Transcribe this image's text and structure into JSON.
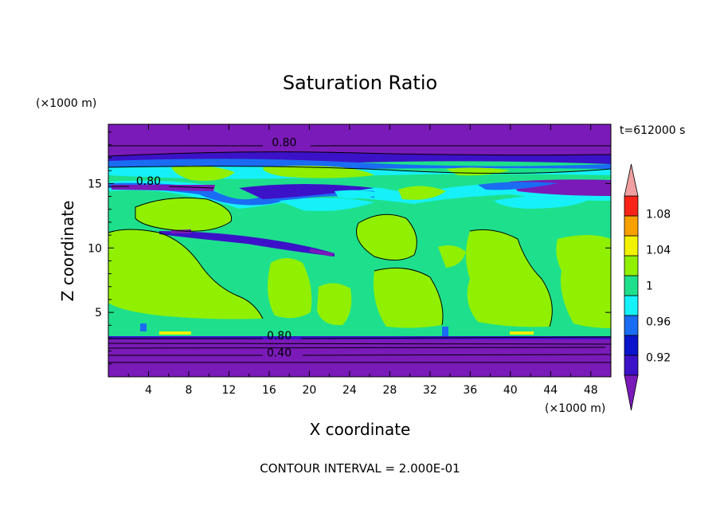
{
  "chart_data": {
    "type": "heatmap",
    "title": "Saturation Ratio",
    "xlabel": "X coordinate",
    "ylabel": "Z coordinate",
    "x_unit": "(×1000 m)",
    "y_unit": "(×1000 m)",
    "time_label": "t=612000 s",
    "footer": "CONTOUR INTERVAL = 2.000E-01",
    "xlim": [
      0,
      50
    ],
    "ylim": [
      0,
      19.6
    ],
    "x_ticks": [
      4,
      8,
      12,
      16,
      20,
      24,
      28,
      32,
      36,
      40,
      44,
      48
    ],
    "y_ticks": [
      5,
      10,
      15
    ],
    "colorbar": {
      "levels": [
        0.9,
        0.92,
        0.94,
        0.96,
        0.98,
        1.0,
        1.02,
        1.04,
        1.06,
        1.08,
        1.1
      ],
      "labels": [
        "0.92",
        "0.96",
        "1",
        "1.04",
        "1.08"
      ],
      "label_values": [
        0.92,
        0.96,
        1.0,
        1.04,
        1.08
      ],
      "colors": [
        "#7a1ab8",
        "#3c12c8",
        "#0a14cc",
        "#1a6cf2",
        "#16f0f8",
        "#1ee08c",
        "#90f000",
        "#f2f200",
        "#f8a000",
        "#f82418",
        "#f0a0a0"
      ],
      "extend": "both"
    },
    "contour_labels": [
      {
        "text": "0.80",
        "x": 17.5,
        "y": 18.2
      },
      {
        "text": "0.80",
        "x": 4.0,
        "y": 15.2
      },
      {
        "text": "0.80",
        "x": 17.0,
        "y": 3.2
      },
      {
        "text": "0.40",
        "x": 17.0,
        "y": 1.9
      }
    ]
  }
}
